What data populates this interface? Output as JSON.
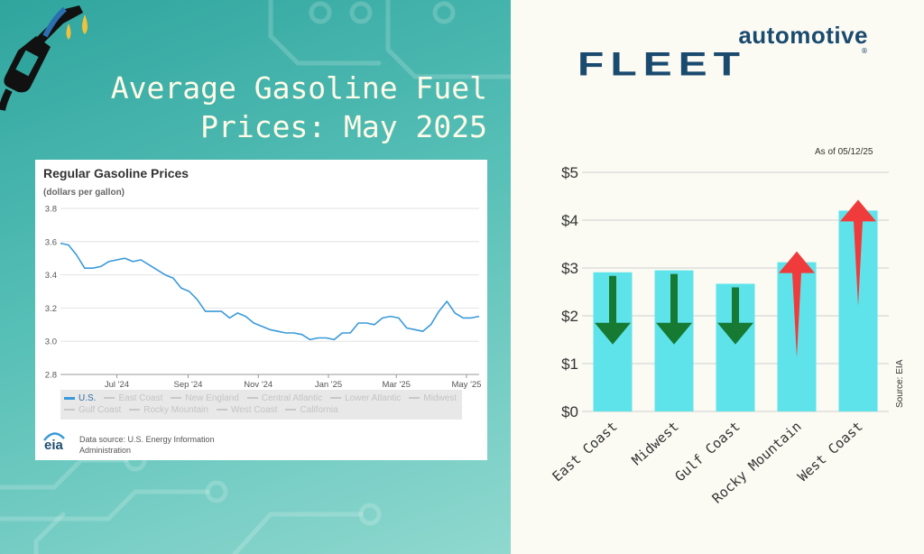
{
  "title": {
    "line1": "Average Gasoline Fuel",
    "line2": "Prices: May 2025"
  },
  "brand": {
    "top": "automotive",
    "main": "FLEET",
    "reg": "®"
  },
  "eia": {
    "title": "Regular Gasoline Prices",
    "units": "(dollars per gallon)",
    "legend": [
      "U.S.",
      "East Coast",
      "New England",
      "Central Atlantic",
      "Lower Atlantic",
      "Midwest",
      "Gulf Coast",
      "Rocky Mountain",
      "West Coast",
      "California"
    ],
    "logo": "eia",
    "source_line1": "Data source: U.S. Energy Information",
    "source_line2": "Administration"
  },
  "asof": "As of 05/12/25",
  "source_label": "Source: EIA",
  "colors": {
    "eia_line": "#3a9ad9",
    "bar": "#5fe3ea",
    "down_arrow": "#167a32",
    "up_arrow": "#ef3b3b",
    "teal": "#2fa59e"
  },
  "chart_data": [
    {
      "type": "line",
      "title": "Regular Gasoline Prices",
      "ylabel": "(dollars per gallon)",
      "ylim": [
        2.8,
        3.8
      ],
      "yticks": [
        "2.8",
        "3.0",
        "3.2",
        "3.4",
        "3.6",
        "3.8"
      ],
      "xlim": [
        "2024-05-13",
        "2025-05-12"
      ],
      "xticks": [
        {
          "label": "Jul '24",
          "date": "2024-07-01"
        },
        {
          "label": "Sep '24",
          "date": "2024-09-01"
        },
        {
          "label": "Nov '24",
          "date": "2024-11-01"
        },
        {
          "label": "Jan '25",
          "date": "2025-01-01"
        },
        {
          "label": "Mar '25",
          "date": "2025-03-01"
        },
        {
          "label": "May '25",
          "date": "2025-05-01"
        }
      ],
      "grid": true,
      "legend": "bottom",
      "series": [
        {
          "name": "U.S.",
          "x": [
            "2024-05-13",
            "2024-05-20",
            "2024-05-27",
            "2024-06-03",
            "2024-06-10",
            "2024-06-17",
            "2024-06-24",
            "2024-07-01",
            "2024-07-08",
            "2024-07-15",
            "2024-07-22",
            "2024-07-29",
            "2024-08-05",
            "2024-08-12",
            "2024-08-19",
            "2024-08-26",
            "2024-09-02",
            "2024-09-09",
            "2024-09-16",
            "2024-09-23",
            "2024-09-30",
            "2024-10-07",
            "2024-10-14",
            "2024-10-21",
            "2024-10-28",
            "2024-11-04",
            "2024-11-11",
            "2024-11-18",
            "2024-11-25",
            "2024-12-02",
            "2024-12-09",
            "2024-12-16",
            "2024-12-23",
            "2024-12-30",
            "2025-01-06",
            "2025-01-13",
            "2025-01-20",
            "2025-01-27",
            "2025-02-03",
            "2025-02-10",
            "2025-02-17",
            "2025-02-24",
            "2025-03-03",
            "2025-03-10",
            "2025-03-17",
            "2025-03-24",
            "2025-03-31",
            "2025-04-07",
            "2025-04-14",
            "2025-04-21",
            "2025-04-28",
            "2025-05-05",
            "2025-05-12"
          ],
          "values": [
            3.59,
            3.58,
            3.52,
            3.44,
            3.44,
            3.45,
            3.48,
            3.49,
            3.5,
            3.48,
            3.49,
            3.46,
            3.43,
            3.4,
            3.38,
            3.32,
            3.3,
            3.25,
            3.18,
            3.18,
            3.18,
            3.14,
            3.17,
            3.15,
            3.11,
            3.09,
            3.07,
            3.06,
            3.05,
            3.05,
            3.04,
            3.01,
            3.02,
            3.02,
            3.01,
            3.05,
            3.05,
            3.11,
            3.11,
            3.1,
            3.14,
            3.15,
            3.14,
            3.08,
            3.07,
            3.06,
            3.1,
            3.18,
            3.24,
            3.17,
            3.14,
            3.14,
            3.15
          ]
        }
      ]
    },
    {
      "type": "bar",
      "categories": [
        "East Coast",
        "Midwest",
        "Gulf Coast",
        "Rocky Mountain",
        "West Coast"
      ],
      "values": [
        2.91,
        2.95,
        2.67,
        3.12,
        4.2
      ],
      "trend": [
        "down",
        "down",
        "down",
        "up",
        "up"
      ],
      "ylim": [
        0,
        5
      ],
      "yticks": [
        "$0",
        "$1",
        "$2",
        "$3",
        "$4",
        "$5"
      ],
      "grid": true,
      "annotations": [
        "As of 05/12/25",
        "Source: EIA"
      ]
    }
  ]
}
